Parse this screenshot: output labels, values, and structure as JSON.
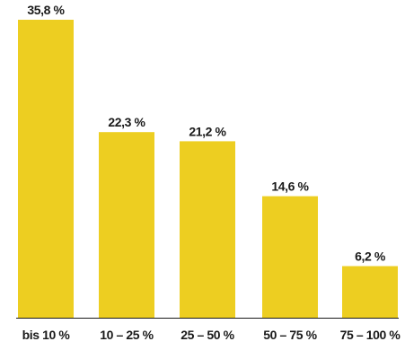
{
  "chart_data": {
    "type": "bar",
    "categories": [
      "bis 10 %",
      "10 – 25 %",
      "25 – 50 %",
      "50 – 75 %",
      "75 – 100 %"
    ],
    "values": [
      35.8,
      22.3,
      21.2,
      14.6,
      6.2
    ],
    "value_labels": [
      "35,8 %",
      "22,3 %",
      "21,2 %",
      "14,6 %",
      "6,2 %"
    ],
    "title": "",
    "xlabel": "",
    "ylabel": "",
    "ylim": [
      0,
      35.8
    ],
    "grid": false,
    "colors": {
      "bar": "#EDCE21",
      "baseline": "#1a1a1a",
      "text": "#1a1a1a"
    }
  }
}
